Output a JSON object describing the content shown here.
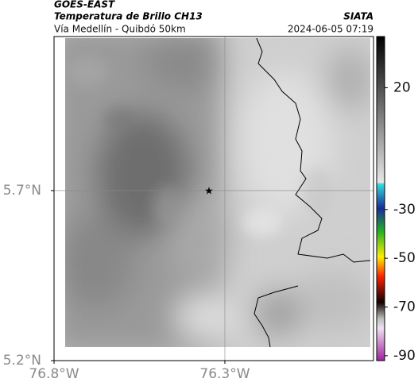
{
  "header": {
    "satellite": "GOES-EAST",
    "product": "Temperatura de Brillo CH13",
    "location": "Vía Medellín - Quibdó 50km",
    "source": "SIATA",
    "datetime": "2024-06-05 07:19"
  },
  "map": {
    "lonlim": [
      -76.8,
      -75.865
    ],
    "latlim": [
      5.2,
      6.153
    ],
    "lon_ticks": [
      {
        "value": -76.8,
        "label": "76.8°W"
      },
      {
        "value": -76.3,
        "label": "76.3°W"
      }
    ],
    "lat_ticks": [
      {
        "value": 5.7,
        "label": "5.7°N"
      },
      {
        "value": 5.2,
        "label": "5.2°N"
      }
    ],
    "grid": true
  },
  "colorbar": {
    "clim": [
      -92,
      41
    ],
    "ticks": [
      20,
      -30,
      -50,
      -70,
      -90
    ]
  }
}
